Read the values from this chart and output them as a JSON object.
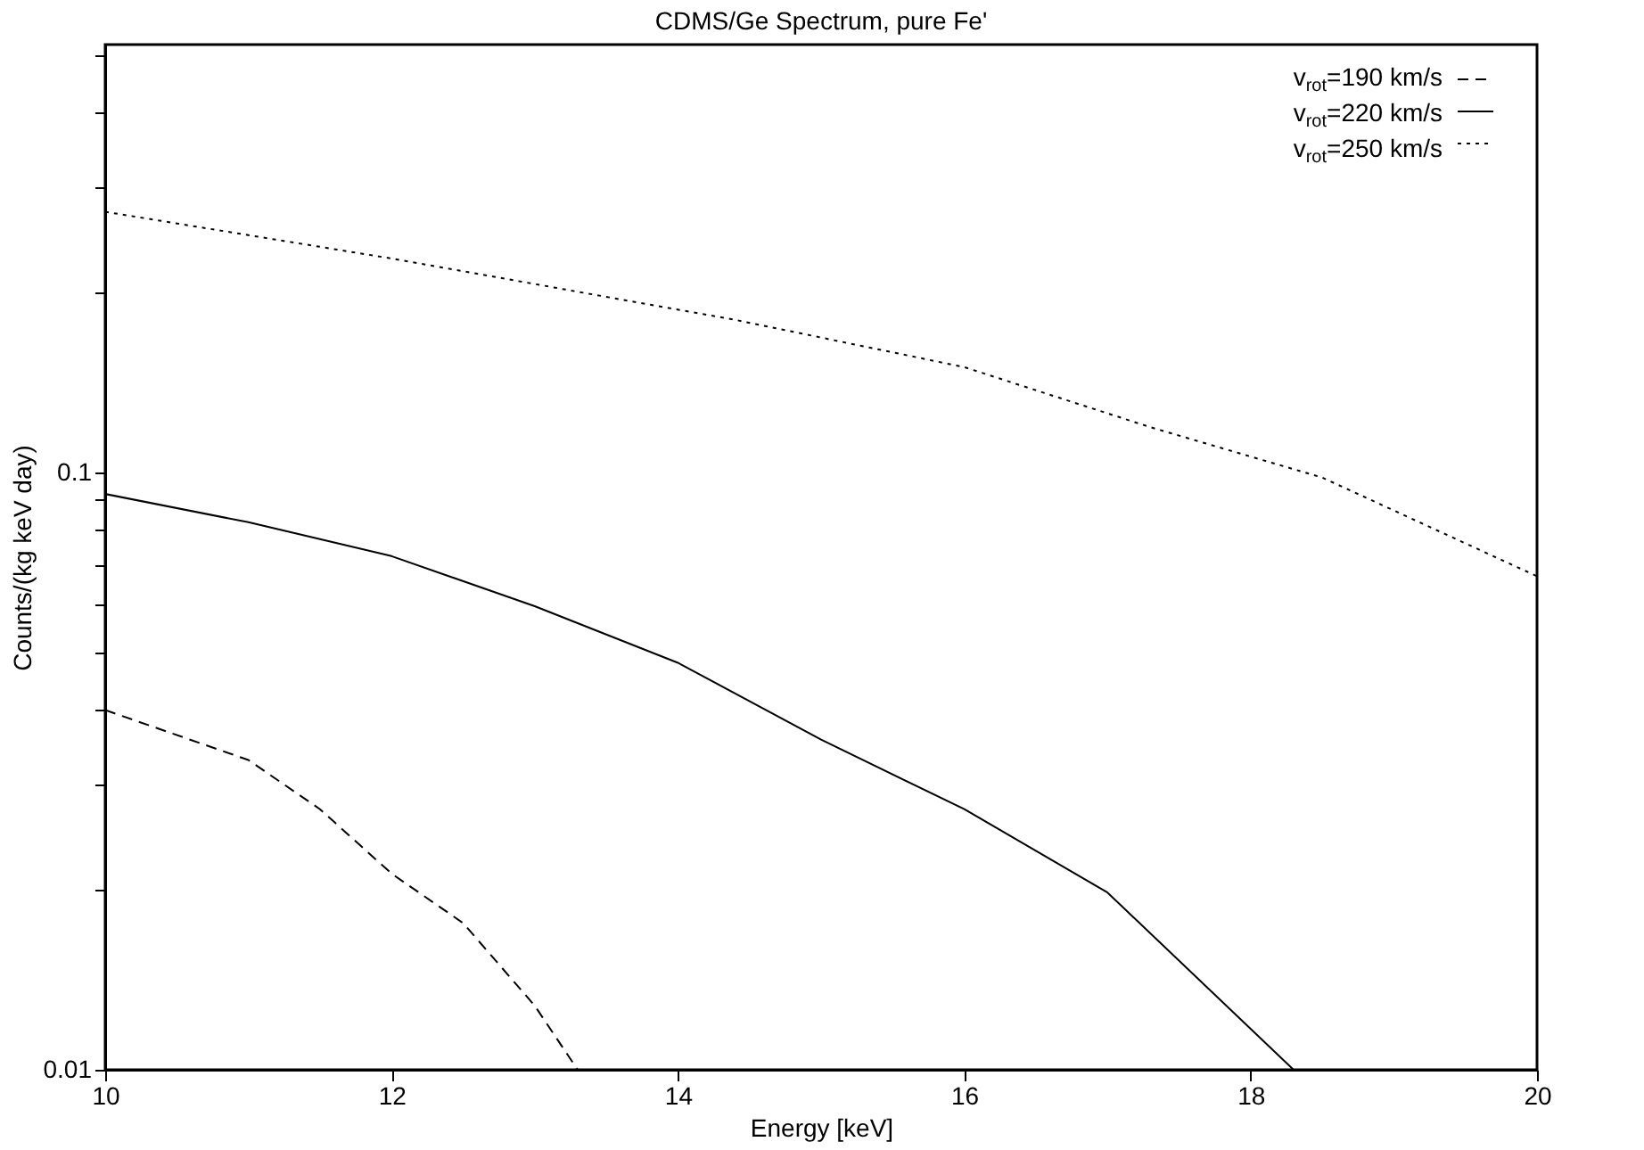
{
  "chart_data": {
    "type": "line",
    "title": "CDMS/Ge Spectrum, pure Fe'",
    "xlabel": "Energy [keV]",
    "ylabel": "Counts/(kg keV day)",
    "log": "y",
    "grid": false,
    "legend": "top right",
    "marker": "none",
    "xlim": [
      10,
      20
    ],
    "xticks": [
      10,
      12,
      14,
      16,
      18,
      20
    ],
    "ylim": [
      0.01,
      0.52
    ],
    "yticks": [
      0.01,
      {
        "value": 0.02,
        "label": null
      },
      {
        "value": 0.03,
        "label": null
      },
      {
        "value": 0.04,
        "label": null
      },
      {
        "value": 0.05,
        "label": null
      },
      {
        "value": 0.06,
        "label": null
      },
      {
        "value": 0.07,
        "label": null
      },
      {
        "value": 0.08,
        "label": null
      },
      {
        "value": 0.09,
        "label": null
      },
      0.1,
      {
        "value": 0.2,
        "label": null
      },
      {
        "value": 0.3,
        "label": null
      },
      {
        "value": 0.4,
        "label": null
      },
      {
        "value": 0.5,
        "label": null
      }
    ],
    "series": [
      {
        "name": "v$_{rot}$=190 km/s",
        "color": "#000000",
        "line_style": "dashed",
        "x": [
          10,
          11,
          11.5,
          12,
          12.5,
          13,
          13.3
        ],
        "values": [
          0.04,
          0.033,
          0.0273,
          0.0213,
          0.0176,
          0.0128,
          0.01
        ]
      },
      {
        "name": "v$_{rot}$=220 km/s",
        "color": "#000000",
        "line_style": "solid",
        "x": [
          10,
          11,
          12,
          13,
          14,
          15,
          16,
          17,
          18.3
        ],
        "values": [
          0.092,
          0.0825,
          0.0724,
          0.0597,
          0.048,
          0.0357,
          0.0273,
          0.0198,
          0.01
        ]
      },
      {
        "name": "v$_{rot}$=250 km/s",
        "color": "#000000",
        "line_style": "dotted",
        "x": [
          10,
          12,
          14.4,
          16,
          17.3,
          18.5,
          20
        ],
        "values": [
          0.273,
          0.228,
          0.18,
          0.15,
          0.119,
          0.098,
          0.067
        ]
      }
    ]
  }
}
